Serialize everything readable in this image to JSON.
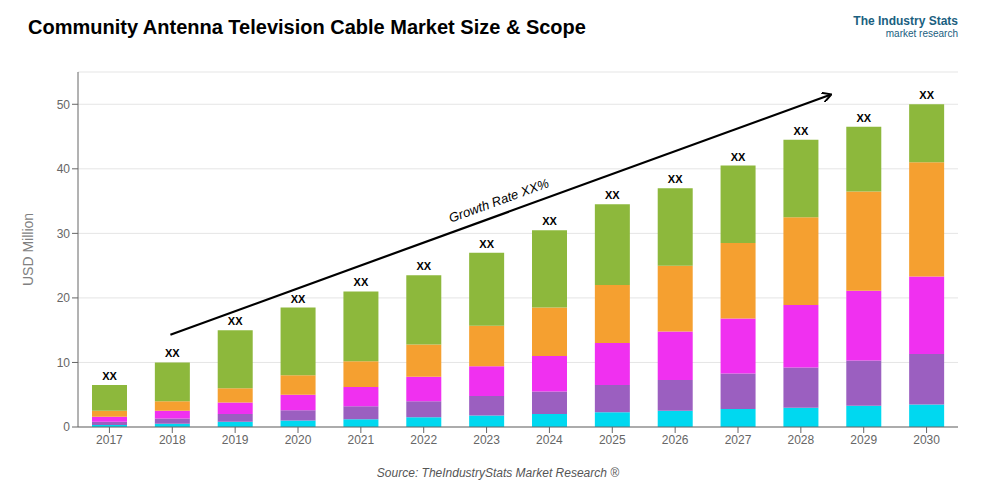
{
  "chart_data": {
    "type": "bar",
    "title": "Community Antenna Television Cable Market Size & Scope",
    "ylabel": "USD Million",
    "categories": [
      "2017",
      "2018",
      "2019",
      "2020",
      "2021",
      "2022",
      "2023",
      "2024",
      "2025",
      "2026",
      "2027",
      "2028",
      "2029",
      "2030"
    ],
    "series": [
      {
        "color": "#00d8f0",
        "values": [
          0.3,
          0.5,
          0.8,
          1.0,
          1.2,
          1.5,
          1.8,
          2.0,
          2.3,
          2.5,
          2.8,
          3.0,
          3.3,
          3.5
        ]
      },
      {
        "color": "#9b5fc0",
        "values": [
          0.5,
          0.8,
          1.2,
          1.6,
          2.0,
          2.5,
          3.0,
          3.5,
          4.2,
          4.8,
          5.5,
          6.2,
          7.0,
          7.8
        ]
      },
      {
        "color": "#f030f0",
        "values": [
          0.8,
          1.2,
          1.8,
          2.4,
          3.0,
          3.8,
          4.6,
          5.5,
          6.5,
          7.5,
          8.5,
          9.7,
          10.8,
          12.0
        ]
      },
      {
        "color": "#f5a030",
        "values": [
          0.9,
          1.5,
          2.2,
          3.0,
          4.0,
          5.0,
          6.3,
          7.5,
          9.0,
          10.2,
          11.7,
          13.6,
          15.4,
          17.7
        ]
      },
      {
        "color": "#8db83c",
        "values": [
          4.0,
          6.0,
          9.0,
          10.5,
          10.8,
          10.7,
          11.3,
          12.0,
          12.5,
          12.0,
          12.0,
          12.0,
          10.0,
          9.0
        ]
      }
    ],
    "stacked": true,
    "ylim": [
      0,
      55
    ],
    "yticks": [
      0,
      10,
      20,
      30,
      40,
      50
    ],
    "grid": true,
    "bar_labels": [
      "XX",
      "XX",
      "XX",
      "XX",
      "XX",
      "XX",
      "XX",
      "XX",
      "XX",
      "XX",
      "XX",
      "XX",
      "XX",
      "XX"
    ],
    "annotations": [
      "Growth Rate XX%"
    ],
    "source": "Source: TheIndustryStats Market Research ®",
    "logo": [
      "The Industry Stats",
      "market research"
    ]
  }
}
